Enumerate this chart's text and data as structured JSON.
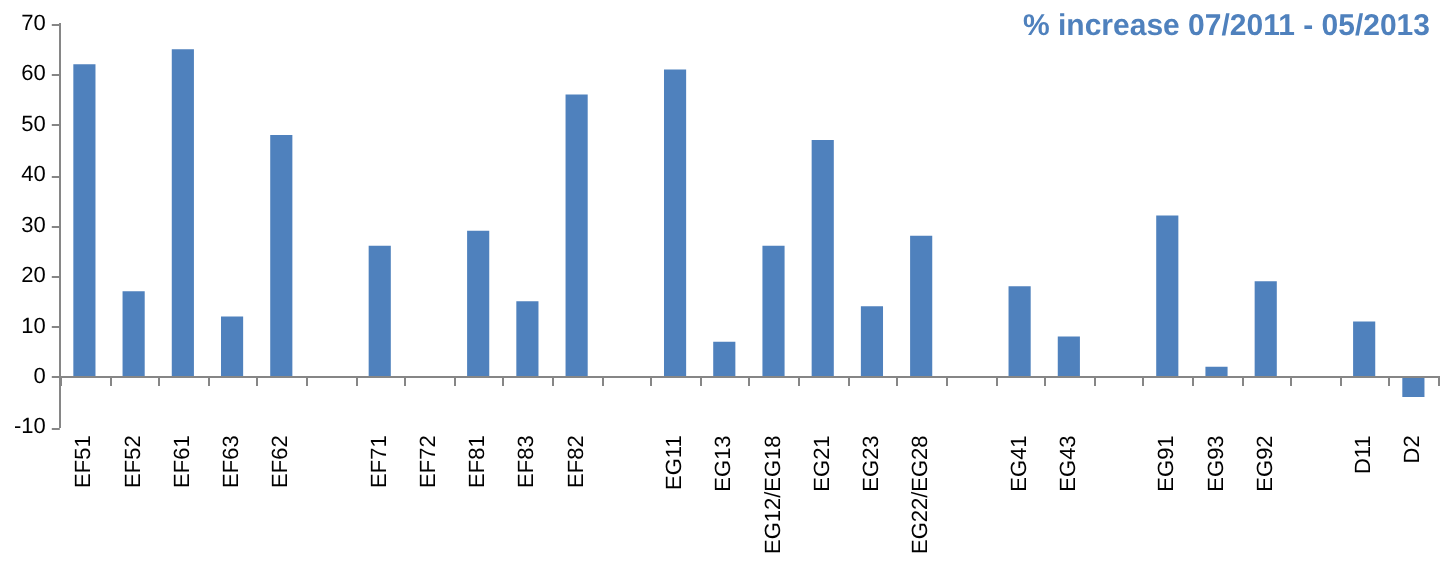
{
  "chart_data": {
    "type": "bar",
    "title": "% increase 07/2011 - 05/2013",
    "categories": [
      "EF51",
      "EF52",
      "EF61",
      "EF63",
      "EF62",
      null,
      "EF71",
      "EF72",
      "EF81",
      "EF83",
      "EF82",
      null,
      "EG11",
      "EG13",
      "EG12/EG18",
      "EG21",
      "EG23",
      "EG22/EG28",
      null,
      "EG41",
      "EG43",
      null,
      "EG91",
      "EG93",
      "EG92",
      null,
      "D11",
      "D2"
    ],
    "values": [
      62,
      17,
      65,
      12,
      48,
      null,
      26,
      0,
      29,
      15,
      56,
      null,
      61,
      7,
      26,
      47,
      14,
      28,
      null,
      18,
      8,
      null,
      32,
      2,
      19,
      null,
      11,
      -4
    ],
    "color": "#4f81bd",
    "ylim": [
      -10,
      70
    ],
    "yticks": [
      -10,
      0,
      10,
      20,
      30,
      40,
      50,
      60,
      70
    ],
    "legend": false
  }
}
